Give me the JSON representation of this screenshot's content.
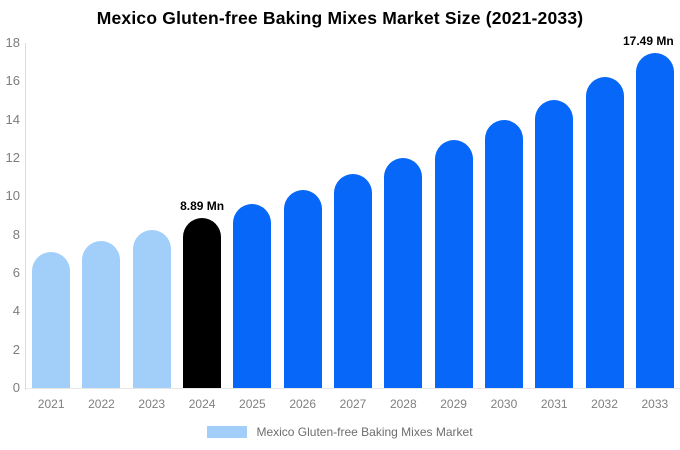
{
  "title": "Mexico Gluten-free Baking Mixes Market Size (2021-2033)",
  "legend": {
    "label": "Mexico Gluten-free Baking Mixes Market",
    "swatch_color": "#a2cefa"
  },
  "colors": {
    "historical_bar": "#a2cefa",
    "highlight_bar": "#000000",
    "forecast_bar": "#0667f8",
    "axis_line": "#dcdcdc",
    "tick_text": "#7d7d7d",
    "x_label_text": "#808080",
    "legend_text": "#6e6e6e",
    "title_text": "#000000",
    "background": "#ffffff"
  },
  "chart_data": {
    "type": "bar",
    "title": "Mexico Gluten-free Baking Mixes Market Size (2021-2033)",
    "unit": "Mn",
    "categories": [
      "2021",
      "2022",
      "2023",
      "2024",
      "2025",
      "2026",
      "2027",
      "2028",
      "2029",
      "2030",
      "2031",
      "2032",
      "2033"
    ],
    "values": [
      7.1,
      7.65,
      8.25,
      8.89,
      9.58,
      10.33,
      11.14,
      12.01,
      12.95,
      13.96,
      15.05,
      16.23,
      17.49
    ],
    "bar_colors": [
      "#a2cefa",
      "#a2cefa",
      "#a2cefa",
      "#000000",
      "#0667f8",
      "#0667f8",
      "#0667f8",
      "#0667f8",
      "#0667f8",
      "#0667f8",
      "#0667f8",
      "#0667f8",
      "#0667f8"
    ],
    "ylim": [
      0,
      18
    ],
    "yticks": [
      0,
      2,
      4,
      6,
      8,
      10,
      12,
      14,
      16,
      18
    ],
    "xlabel": "",
    "ylabel": "",
    "grid": false,
    "legend_entries": [
      "Mexico Gluten-free Baking Mixes Market"
    ],
    "legend_position": "bottom",
    "annotations": [
      {
        "category": "2024",
        "text": "8.89 Mn"
      },
      {
        "category": "2033",
        "text": "17.49 Mn"
      }
    ]
  }
}
